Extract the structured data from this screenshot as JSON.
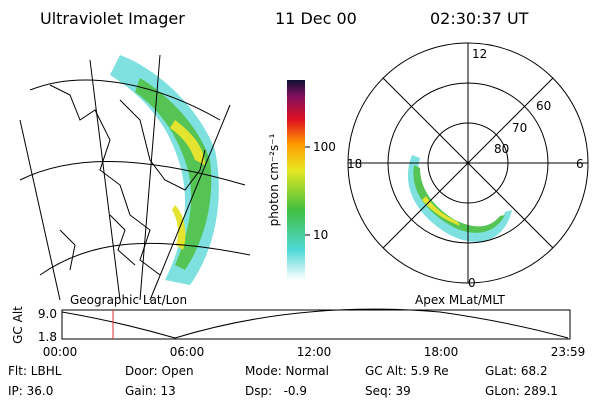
{
  "header": {
    "title": "Ultraviolet Imager",
    "date": "11 Dec 00",
    "time": "02:30:37 UT"
  },
  "colorbar": {
    "label": "photon cm⁻²s⁻¹",
    "ticks": [
      "100",
      "10"
    ]
  },
  "polar_plot": {
    "mlt_labels": [
      "12",
      "18",
      "6",
      "0"
    ],
    "lat_labels": [
      "60",
      "70",
      "80"
    ]
  },
  "panel_labels": {
    "left": "Geographic Lat/Lon",
    "right": "Apex MLat/MLT"
  },
  "altitude_plot": {
    "axis_label": "GC Alt",
    "yticks": [
      "9.0",
      "1.8"
    ],
    "xticks": [
      "00:00",
      "06:00",
      "12:00",
      "18:00",
      "23:59"
    ]
  },
  "footer": {
    "rows": [
      [
        "Flt: LBHL",
        "Door: Open",
        "Mode: Normal",
        "GC Alt: 5.9 Re",
        "GLat: 68.2"
      ],
      [
        "IP: 36.0",
        "Gain: 13",
        "Dsp:   -0.9",
        "Seq: 39",
        "GLon: 289.1"
      ]
    ]
  }
}
